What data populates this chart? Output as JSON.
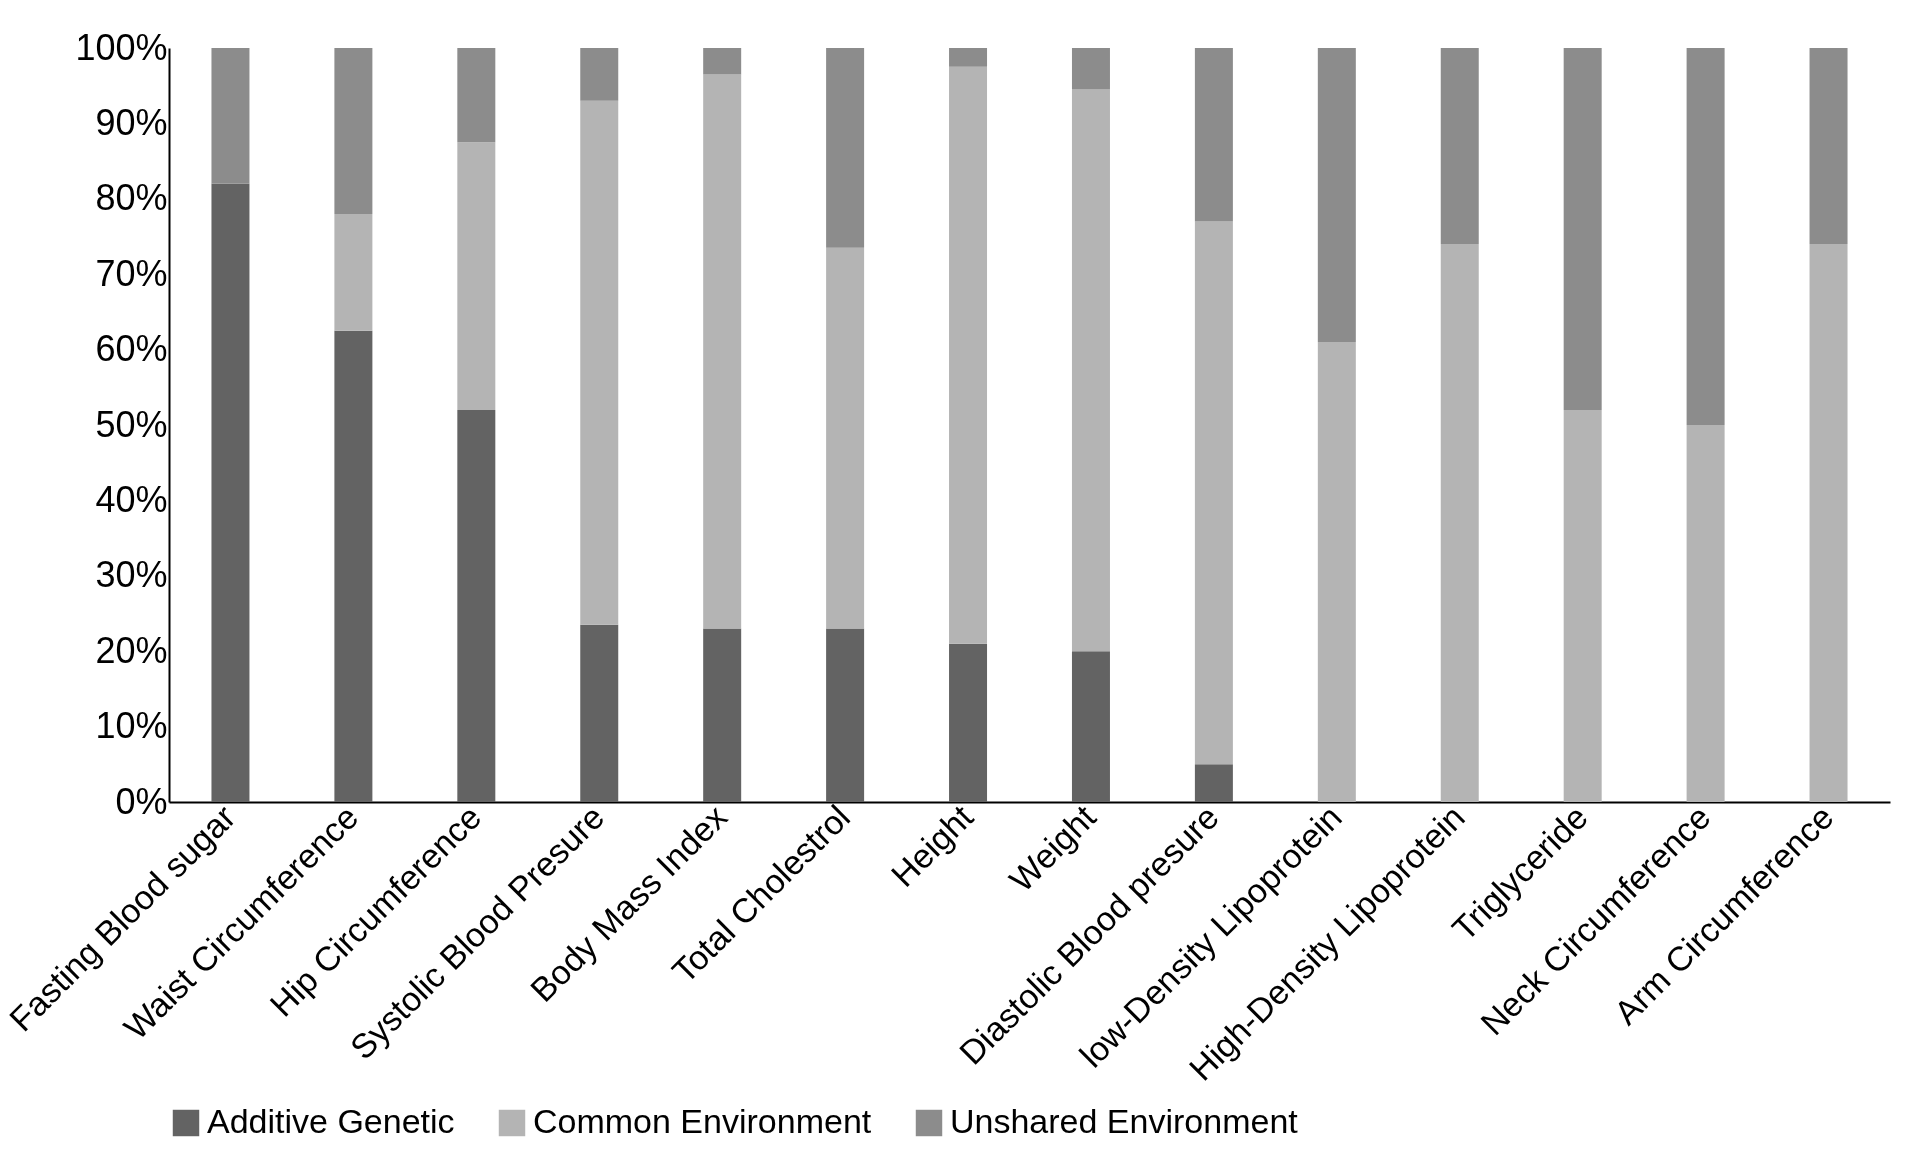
{
  "chart_data": {
    "type": "bar",
    "stacked": true,
    "categories": [
      "Fasting Blood sugar",
      "Waist Circumference",
      "Hip Circumference",
      "Systolic Blood Presure",
      "Body Mass Index",
      "Total Cholestrol",
      "Height",
      "Weight",
      "Diastolic Blood presure",
      "low-Density Lipoprotein",
      "High-Density Lipoprotein",
      "Triglyceride",
      "Neck Circumference",
      "Arm Circumference"
    ],
    "series": [
      {
        "name": "Additive Genetic",
        "color": "#636363",
        "values": [
          82,
          62.5,
          52,
          23.5,
          23,
          23,
          21,
          20,
          5,
          0,
          0,
          0,
          0,
          0
        ]
      },
      {
        "name": "Common Environment",
        "color": "#b4b4b4",
        "values": [
          0,
          15.5,
          35.5,
          69.5,
          73.5,
          50.5,
          76.5,
          74.5,
          72,
          61,
          74,
          52,
          50,
          74
        ]
      },
      {
        "name": "Unshared Environment",
        "color": "#8c8c8c",
        "values": [
          18,
          22,
          12.5,
          7,
          3.5,
          26.5,
          2.5,
          5.5,
          23,
          39,
          26,
          48,
          50,
          26
        ]
      }
    ],
    "ylim": [
      0,
      100
    ],
    "yticks": [
      {
        "value": 0,
        "label": "0%"
      },
      {
        "value": 10,
        "label": "10%"
      },
      {
        "value": 20,
        "label": "20%"
      },
      {
        "value": 30,
        "label": "30%"
      },
      {
        "value": 40,
        "label": "40%"
      },
      {
        "value": 50,
        "label": "50%"
      },
      {
        "value": 60,
        "label": "60%"
      },
      {
        "value": 70,
        "label": "70%"
      },
      {
        "value": 80,
        "label": "80%"
      },
      {
        "value": 90,
        "label": "90%"
      },
      {
        "value": 100,
        "label": "100%"
      }
    ],
    "grid": false,
    "legend": "bottom"
  }
}
